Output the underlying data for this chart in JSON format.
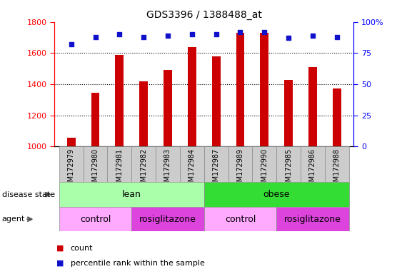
{
  "title": "GDS3396 / 1388488_at",
  "samples": [
    "GSM172979",
    "GSM172980",
    "GSM172981",
    "GSM172982",
    "GSM172983",
    "GSM172984",
    "GSM172987",
    "GSM172989",
    "GSM172990",
    "GSM172985",
    "GSM172986",
    "GSM172988"
  ],
  "counts": [
    1055,
    1345,
    1590,
    1420,
    1490,
    1640,
    1580,
    1730,
    1730,
    1430,
    1510,
    1375
  ],
  "percentile_ranks": [
    82,
    88,
    90,
    88,
    89,
    90,
    90,
    92,
    92,
    87,
    89,
    88
  ],
  "ylim_left": [
    1000,
    1800
  ],
  "ylim_right": [
    0,
    100
  ],
  "yticks_left": [
    1000,
    1200,
    1400,
    1600,
    1800
  ],
  "yticks_right": [
    0,
    25,
    50,
    75,
    100
  ],
  "bar_color": "#cc0000",
  "dot_color": "#1111cc",
  "plot_bg_color": "#ffffff",
  "tick_bg_color": "#cccccc",
  "disease_state_lean_color": "#aaffaa",
  "disease_state_obese_color": "#33dd33",
  "agent_control_color": "#ffaaff",
  "agent_rosi_color": "#dd44dd",
  "lean_n": 6,
  "obese_n": 6,
  "lean_control_n": 3,
  "lean_rosi_n": 3,
  "obese_control_n": 3,
  "obese_rosi_n": 3
}
